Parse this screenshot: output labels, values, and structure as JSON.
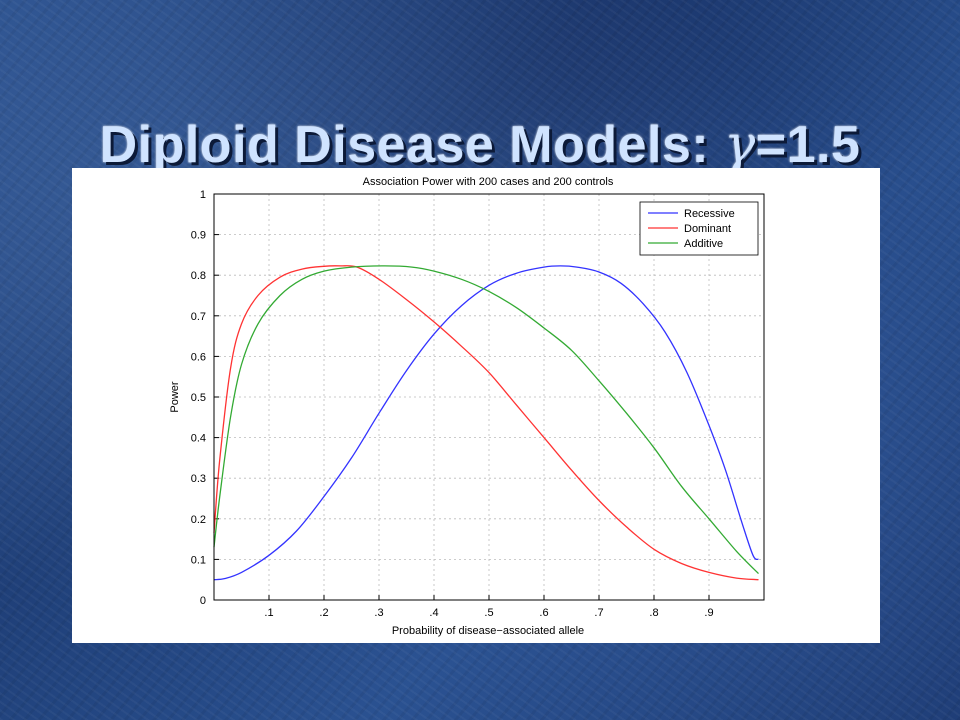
{
  "slide": {
    "title_prefix": "Diploid Disease Models: ",
    "title_symbol": "γ",
    "title_suffix": "=1.5"
  },
  "chart_data": {
    "type": "line",
    "title": "Association Power with 200 cases and 200 controls",
    "xlabel": "Probability of disease−associated allele",
    "ylabel": "Power",
    "xlim": [
      0,
      1
    ],
    "ylim": [
      0,
      1
    ],
    "xticks": [
      {
        "value": 0.1,
        "label": ".1"
      },
      {
        "value": 0.2,
        "label": ".2"
      },
      {
        "value": 0.3,
        "label": ".3"
      },
      {
        "value": 0.4,
        "label": ".4"
      },
      {
        "value": 0.5,
        "label": ".5"
      },
      {
        "value": 0.6,
        "label": ".6"
      },
      {
        "value": 0.7,
        "label": ".7"
      },
      {
        "value": 0.8,
        "label": ".8"
      },
      {
        "value": 0.9,
        "label": ".9"
      }
    ],
    "yticks": [
      {
        "value": 0,
        "label": "0"
      },
      {
        "value": 0.1,
        "label": "0.1"
      },
      {
        "value": 0.2,
        "label": "0.2"
      },
      {
        "value": 0.3,
        "label": "0.3"
      },
      {
        "value": 0.4,
        "label": "0.4"
      },
      {
        "value": 0.5,
        "label": "0.5"
      },
      {
        "value": 0.6,
        "label": "0.6"
      },
      {
        "value": 0.7,
        "label": "0.7"
      },
      {
        "value": 0.8,
        "label": "0.8"
      },
      {
        "value": 0.9,
        "label": "0.9"
      },
      {
        "value": 1,
        "label": "1"
      }
    ],
    "grid": true,
    "legend_position": "top-right",
    "series": [
      {
        "name": "Recessive",
        "color": "#3333ff",
        "points": [
          [
            0.0,
            0.05
          ],
          [
            0.02,
            0.053
          ],
          [
            0.05,
            0.068
          ],
          [
            0.1,
            0.11
          ],
          [
            0.15,
            0.17
          ],
          [
            0.2,
            0.255
          ],
          [
            0.25,
            0.35
          ],
          [
            0.3,
            0.46
          ],
          [
            0.35,
            0.565
          ],
          [
            0.4,
            0.655
          ],
          [
            0.45,
            0.725
          ],
          [
            0.5,
            0.775
          ],
          [
            0.55,
            0.805
          ],
          [
            0.6,
            0.82
          ],
          [
            0.63,
            0.823
          ],
          [
            0.66,
            0.82
          ],
          [
            0.7,
            0.808
          ],
          [
            0.74,
            0.78
          ],
          [
            0.78,
            0.73
          ],
          [
            0.82,
            0.66
          ],
          [
            0.86,
            0.56
          ],
          [
            0.9,
            0.43
          ],
          [
            0.93,
            0.32
          ],
          [
            0.96,
            0.19
          ],
          [
            0.98,
            0.11
          ],
          [
            0.99,
            0.1
          ]
        ]
      },
      {
        "name": "Dominant",
        "color": "#ff3333",
        "points": [
          [
            0.0,
            0.165
          ],
          [
            0.01,
            0.34
          ],
          [
            0.03,
            0.57
          ],
          [
            0.05,
            0.68
          ],
          [
            0.08,
            0.75
          ],
          [
            0.12,
            0.795
          ],
          [
            0.16,
            0.815
          ],
          [
            0.2,
            0.822
          ],
          [
            0.23,
            0.823
          ],
          [
            0.26,
            0.82
          ],
          [
            0.3,
            0.79
          ],
          [
            0.35,
            0.74
          ],
          [
            0.4,
            0.685
          ],
          [
            0.45,
            0.625
          ],
          [
            0.5,
            0.56
          ],
          [
            0.55,
            0.48
          ],
          [
            0.6,
            0.4
          ],
          [
            0.65,
            0.32
          ],
          [
            0.7,
            0.245
          ],
          [
            0.75,
            0.18
          ],
          [
            0.8,
            0.125
          ],
          [
            0.85,
            0.09
          ],
          [
            0.9,
            0.068
          ],
          [
            0.95,
            0.054
          ],
          [
            0.99,
            0.05
          ]
        ]
      },
      {
        "name": "Additive",
        "color": "#33aa33",
        "points": [
          [
            0.0,
            0.13
          ],
          [
            0.01,
            0.25
          ],
          [
            0.03,
            0.45
          ],
          [
            0.05,
            0.58
          ],
          [
            0.08,
            0.68
          ],
          [
            0.12,
            0.75
          ],
          [
            0.16,
            0.79
          ],
          [
            0.2,
            0.81
          ],
          [
            0.25,
            0.82
          ],
          [
            0.31,
            0.823
          ],
          [
            0.36,
            0.82
          ],
          [
            0.4,
            0.81
          ],
          [
            0.45,
            0.79
          ],
          [
            0.5,
            0.76
          ],
          [
            0.55,
            0.72
          ],
          [
            0.6,
            0.67
          ],
          [
            0.65,
            0.615
          ],
          [
            0.7,
            0.54
          ],
          [
            0.75,
            0.46
          ],
          [
            0.8,
            0.375
          ],
          [
            0.85,
            0.28
          ],
          [
            0.9,
            0.2
          ],
          [
            0.95,
            0.12
          ],
          [
            0.99,
            0.065
          ]
        ]
      }
    ]
  }
}
